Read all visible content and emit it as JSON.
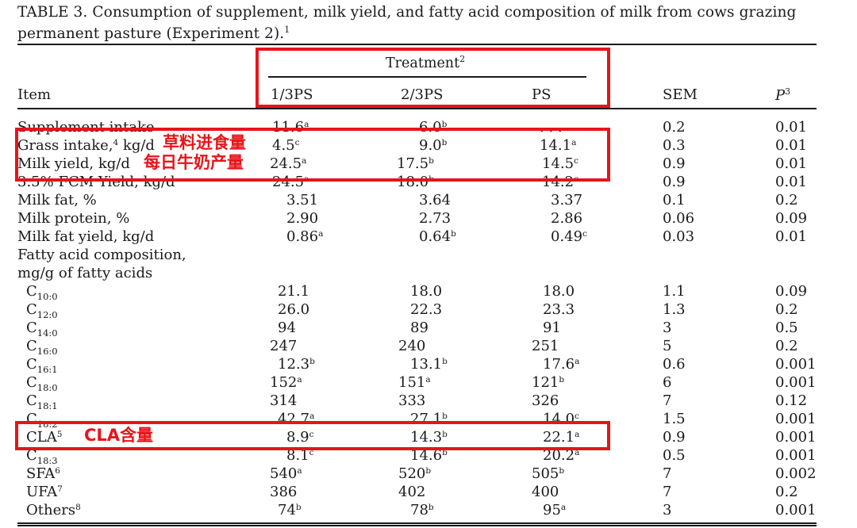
{
  "caption": {
    "text": "TABLE 3. Consumption of supplement, milk yield, and fatty acid composition of milk from cows grazing permanent pasture (Experiment 2).",
    "footnote": "1"
  },
  "header": {
    "group_label": "Treatment",
    "group_footnote": "2",
    "columns": {
      "item": "Item",
      "t1": "1/3PS",
      "t2": "2/3PS",
      "t3": "PS",
      "sem": "SEM",
      "p": "P",
      "p_footnote": "3"
    }
  },
  "rows": [
    {
      "item": "Supplement intake",
      "t1": "11.6",
      "t1s": "a",
      "t2": "6.0",
      "t2s": "b",
      "t3": ". . .",
      "t3s": "",
      "sem": "0.2",
      "p": "0.01"
    },
    {
      "item": "Grass intake,",
      "item_sup": "4",
      "item_tail": " kg/d",
      "t1": "4.5",
      "t1s": "c",
      "t2": "9.0",
      "t2s": "b",
      "t3": "14.1",
      "t3s": "a",
      "sem": "0.3",
      "p": "0.01"
    },
    {
      "item": "Milk yield, kg/d",
      "t1": "24.5",
      "t1s": "a",
      "t2": "17.5",
      "t2s": "b",
      "t3": "14.5",
      "t3s": "c",
      "sem": "0.9",
      "p": "0.01"
    },
    {
      "item": "3.5% FCM Yield, kg/d",
      "t1": "24.5",
      "t1s": "a",
      "t2": "18.0",
      "t2s": "b",
      "t3": "14.2",
      "t3s": "c",
      "sem": "0.9",
      "p": "0.01"
    },
    {
      "item": "Milk fat, %",
      "t1": "3.51",
      "t2": "3.64",
      "t3": "3.37",
      "sem": "0.1",
      "p": "0.2"
    },
    {
      "item": "Milk protein, %",
      "t1": "2.90",
      "t2": "2.73",
      "t3": "2.86",
      "sem": "0.06",
      "p": "0.09"
    },
    {
      "item": "Milk fat yield, kg/d",
      "t1": "0.86",
      "t1s": "a",
      "t2": "0.64",
      "t2s": "b",
      "t3": "0.49",
      "t3s": "c",
      "sem": "0.03",
      "p": "0.01"
    },
    {
      "item": "Fatty acid composition,"
    },
    {
      "item": "mg/g of fatty acids"
    },
    {
      "item": "C",
      "item_sub": "10:0",
      "t1": "21.1",
      "t2": "18.0",
      "t3": "18.0",
      "sem": "1.1",
      "p": "0.09"
    },
    {
      "item": "C",
      "item_sub": "12:0",
      "t1": "26.0",
      "t2": "22.3",
      "t3": "23.3",
      "sem": "1.3",
      "p": "0.2"
    },
    {
      "item": "C",
      "item_sub": "14:0",
      "t1": "94",
      "t2": "89",
      "t3": "91",
      "sem": "3",
      "p": "0.5"
    },
    {
      "item": "C",
      "item_sub": "16:0",
      "t1": "247",
      "t2": "240",
      "t3": "251",
      "sem": "5",
      "p": "0.2"
    },
    {
      "item": "C",
      "item_sub": "16:1",
      "t1": "12.3",
      "t1s": "b",
      "t2": "13.1",
      "t2s": "b",
      "t3": "17.6",
      "t3s": "a",
      "sem": "0.6",
      "p": "0.001"
    },
    {
      "item": "C",
      "item_sub": "18:0",
      "t1": "152",
      "t1s": "a",
      "t2": "151",
      "t2s": "a",
      "t3": "121",
      "t3s": "b",
      "sem": "6",
      "p": "0.001"
    },
    {
      "item": "C",
      "item_sub": "18:1",
      "t1": "314",
      "t2": "333",
      "t3": "326",
      "sem": "7",
      "p": "0.12"
    },
    {
      "item": "C",
      "item_sub": "18:2",
      "t1": "42.7",
      "t1s": "a",
      "t2": "27.1",
      "t2s": "b",
      "t3": "14.0",
      "t3s": "c",
      "sem": "1.5",
      "p": "0.001"
    },
    {
      "item": "CLA",
      "item_sup": "5",
      "t1": "8.9",
      "t1s": "c",
      "t2": "14.3",
      "t2s": "b",
      "t3": "22.1",
      "t3s": "a",
      "sem": "0.9",
      "p": "0.001"
    },
    {
      "item": "C",
      "item_sub": "18:3",
      "t1": "8.1",
      "t1s": "c",
      "t2": "14.6",
      "t2s": "b",
      "t3": "20.2",
      "t3s": "a",
      "sem": "0.5",
      "p": "0.001"
    },
    {
      "item": "SFA",
      "item_sup": "6",
      "t1": "540",
      "t1s": "a",
      "t2": "520",
      "t2s": "b",
      "t3": "505",
      "t3s": "b",
      "sem": "7",
      "p": "0.002"
    },
    {
      "item": "UFA",
      "item_sup": "7",
      "t1": "386",
      "t2": "402",
      "t3": "400",
      "sem": "7",
      "p": "0.2"
    },
    {
      "item": "Others",
      "item_sup": "8",
      "t1": "74",
      "t1s": "b",
      "t2": "78",
      "t2s": "b",
      "t3": "95",
      "t3s": "a",
      "sem": "3",
      "p": "0.001"
    }
  ],
  "annotations": {
    "grass_intake_label": "草料进食量",
    "milk_yield_label": "每日牛奶产量",
    "cla_label": "CLA含量",
    "color": "#e8141a"
  }
}
